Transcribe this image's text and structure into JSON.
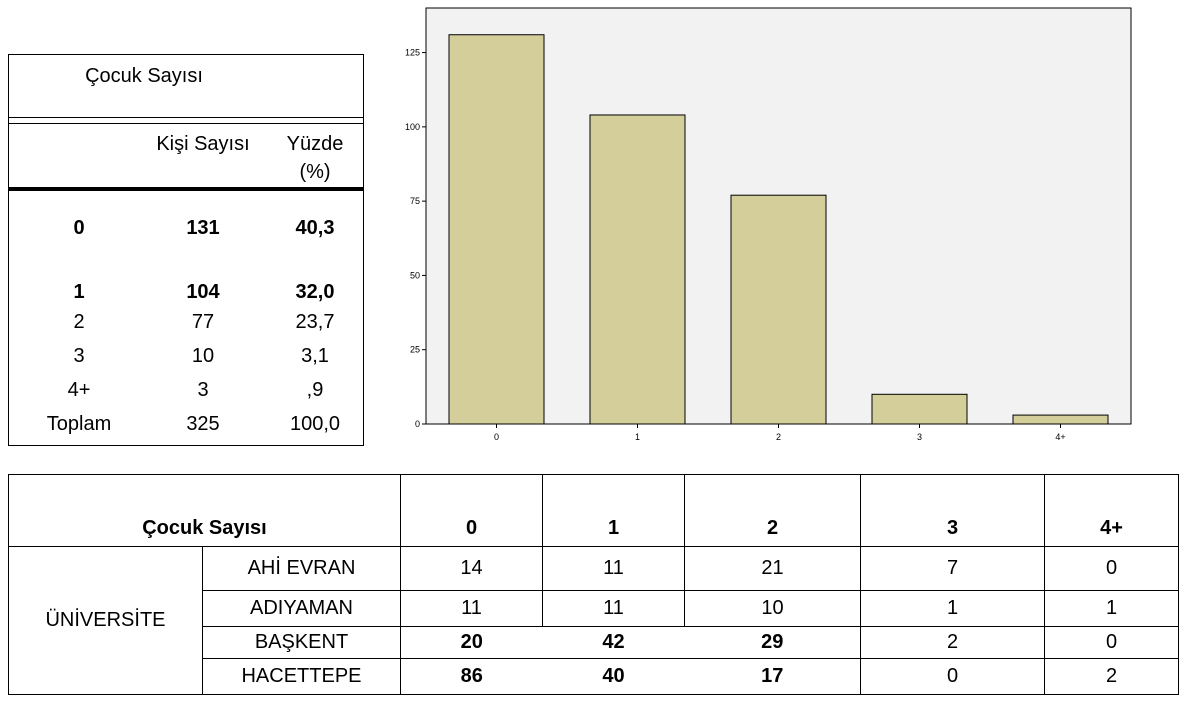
{
  "summary": {
    "title": "Çocuk Sayısı",
    "col_count": "Kişi Sayısı",
    "col_pct_line1": "Yüzde",
    "col_pct_line2": "(%)",
    "rows": [
      {
        "label": "0",
        "count": "131",
        "pct": "40,3",
        "bold": true
      },
      {
        "label": "1",
        "count": "104",
        "pct": "32,0",
        "bold": true
      },
      {
        "label": "2",
        "count": "77",
        "pct": "23,7",
        "bold": false
      },
      {
        "label": "3",
        "count": "10",
        "pct": "3,1",
        "bold": false
      },
      {
        "label": "4+",
        "count": "3",
        "pct": ",9",
        "bold": false
      },
      {
        "label": "Toplam",
        "count": "325",
        "pct": "100,0",
        "bold": false
      }
    ]
  },
  "chart_data": {
    "type": "bar",
    "categories": [
      "0",
      "1",
      "2",
      "3",
      "4+"
    ],
    "values": [
      131,
      104,
      77,
      10,
      3
    ],
    "ylim": [
      0,
      140
    ],
    "yticks": [
      "0",
      "25",
      "50",
      "75",
      "100",
      "125"
    ],
    "ytick_values": [
      0,
      25,
      50,
      75,
      100,
      125
    ],
    "bar_color": "#d4cf9a",
    "background": "#f2f2f2"
  },
  "uni_table": {
    "header_label": "Çocuk Sayısı",
    "columns": [
      "0",
      "1",
      "2",
      "3",
      "4+"
    ],
    "group_label": "ÜNİVERSİTE",
    "rows": [
      {
        "name": "AHİ EVRAN",
        "values": [
          "14",
          "11",
          "21",
          "7",
          "0"
        ]
      },
      {
        "name": "ADIYAMAN",
        "values": [
          "11",
          "11",
          "10",
          "1",
          "1"
        ]
      },
      {
        "name": "BAŞKENT",
        "values": [
          "20",
          "42",
          "29",
          "2",
          "0"
        ]
      },
      {
        "name": "HACETTEPE",
        "values": [
          "86",
          "40",
          "17",
          "0",
          "2"
        ]
      }
    ]
  }
}
